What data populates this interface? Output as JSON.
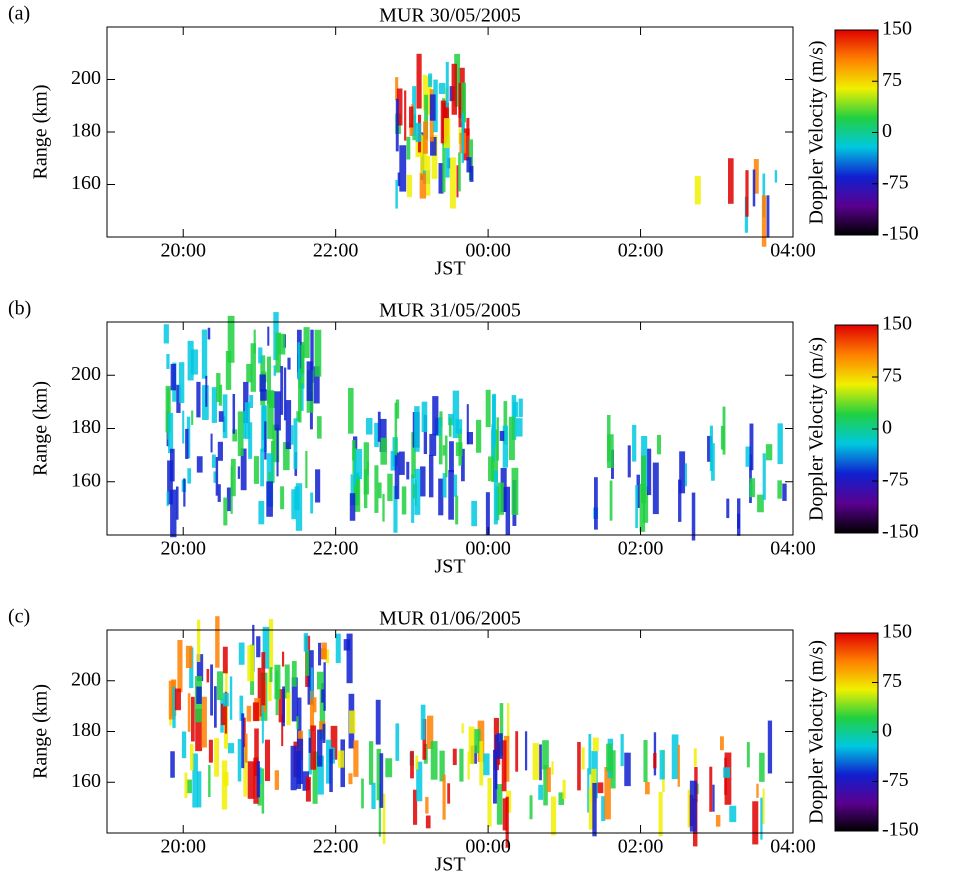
{
  "chart_data": [
    {
      "type": "heatmap",
      "panel_label": "(a)",
      "title": "MUR 30/05/2005",
      "x_label": "JST",
      "y_label": "Range (km)",
      "xlim": [
        19,
        28
      ],
      "xticks": [
        {
          "value": 20,
          "label": "20:00"
        },
        {
          "value": 22,
          "label": "22:00"
        },
        {
          "value": 24,
          "label": "00:00"
        },
        {
          "value": 26,
          "label": "02:00"
        },
        {
          "value": 28,
          "label": "04:00"
        }
      ],
      "ylim": [
        140,
        220
      ],
      "yticks": [
        160,
        180,
        200
      ],
      "colorbar_label": "Doppler Velocity (m/s)",
      "clim": [
        -150,
        150
      ],
      "cticks": [
        -150,
        -75,
        0,
        75,
        150
      ],
      "colorscale": [
        "#000000",
        "#5a0090",
        "#1020d0",
        "#00c8e0",
        "#20d040",
        "#f0f000",
        "#ff8000",
        "#e00000"
      ]
    },
    {
      "type": "heatmap",
      "panel_label": "(b)",
      "title": "MUR 31/05/2005",
      "x_label": "JST",
      "y_label": "Range (km)",
      "xlim": [
        19,
        28
      ],
      "xticks": [
        {
          "value": 20,
          "label": "20:00"
        },
        {
          "value": 22,
          "label": "22:00"
        },
        {
          "value": 24,
          "label": "00:00"
        },
        {
          "value": 26,
          "label": "02:00"
        },
        {
          "value": 28,
          "label": "04:00"
        }
      ],
      "ylim": [
        140,
        220
      ],
      "yticks": [
        160,
        180,
        200
      ],
      "colorbar_label": "Doppler Velocity (m/s)",
      "clim": [
        -150,
        150
      ],
      "cticks": [
        -150,
        -75,
        0,
        75,
        150
      ],
      "colorscale": [
        "#000000",
        "#5a0090",
        "#1020d0",
        "#00c8e0",
        "#20d040",
        "#f0f000",
        "#ff8000",
        "#e00000"
      ]
    },
    {
      "type": "heatmap",
      "panel_label": "(c)",
      "title": "MUR 01/06/2005",
      "x_label": "JST",
      "y_label": "Range (km)",
      "xlim": [
        19,
        28
      ],
      "xticks": [
        {
          "value": 20,
          "label": "20:00"
        },
        {
          "value": 22,
          "label": "22:00"
        },
        {
          "value": 24,
          "label": "00:00"
        },
        {
          "value": 26,
          "label": "02:00"
        },
        {
          "value": 28,
          "label": "04:00"
        }
      ],
      "ylim": [
        140,
        220
      ],
      "yticks": [
        160,
        180,
        200
      ],
      "colorbar_label": "Doppler Velocity (m/s)",
      "clim": [
        -150,
        150
      ],
      "cticks": [
        -150,
        -75,
        0,
        75,
        150
      ],
      "colorscale": [
        "#000000",
        "#5a0090",
        "#1020d0",
        "#00c8e0",
        "#20d040",
        "#f0f000",
        "#ff8000",
        "#e00000"
      ]
    }
  ]
}
